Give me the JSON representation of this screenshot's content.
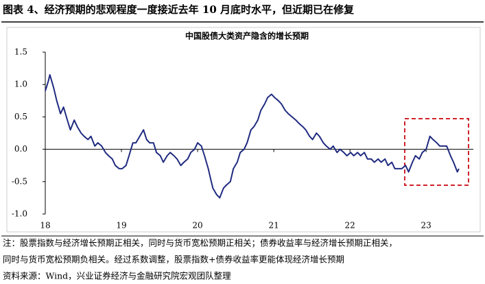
{
  "header": {
    "title": "图表 4、经济预期的悲观程度一度接近去年 10 月底时水平，但近期已在修复"
  },
  "chart_data": {
    "type": "line",
    "title": "中国股债大类资产隐含的增长预期",
    "color": "#1f2a80",
    "x": [
      18.0,
      18.04,
      18.06,
      18.11,
      18.15,
      18.2,
      18.24,
      18.29,
      18.33,
      18.38,
      18.42,
      18.47,
      18.51,
      18.56,
      18.6,
      18.65,
      18.69,
      18.74,
      18.79,
      18.83,
      18.88,
      18.92,
      18.97,
      19.01,
      19.06,
      19.1,
      19.15,
      19.19,
      19.24,
      19.29,
      19.33,
      19.37,
      19.42,
      19.46,
      19.51,
      19.55,
      19.6,
      19.64,
      19.69,
      19.73,
      19.78,
      19.82,
      19.87,
      19.91,
      19.96,
      20.0,
      20.05,
      20.09,
      20.14,
      20.17,
      20.2,
      20.25,
      20.29,
      20.34,
      20.38,
      20.43,
      20.47,
      20.52,
      20.56,
      20.61,
      20.65,
      20.7,
      20.74,
      20.79,
      20.83,
      20.88,
      20.92,
      20.97,
      21.01,
      21.06,
      21.1,
      21.15,
      21.19,
      21.24,
      21.29,
      21.33,
      21.38,
      21.42,
      21.47,
      21.51,
      21.56,
      21.6,
      21.65,
      21.69,
      21.74,
      21.78,
      21.83,
      21.87,
      21.92,
      21.96,
      22.01,
      22.05,
      22.1,
      22.14,
      22.19,
      22.23,
      22.28,
      22.32,
      22.37,
      22.41,
      22.46,
      22.5,
      22.55,
      22.59,
      22.64,
      22.68,
      22.73,
      22.77,
      22.82,
      22.86,
      22.91,
      22.95,
      23.0,
      23.05,
      23.09,
      23.14,
      23.18,
      23.23,
      23.27,
      23.32,
      23.36,
      23.41,
      23.43
    ],
    "values": [
      0.9,
      1.05,
      1.15,
      0.95,
      0.75,
      0.55,
      0.65,
      0.45,
      0.3,
      0.45,
      0.35,
      0.25,
      0.2,
      0.15,
      0.2,
      0.05,
      0.1,
      0.05,
      -0.05,
      -0.1,
      -0.15,
      -0.25,
      -0.3,
      -0.3,
      -0.25,
      -0.1,
      0.1,
      0.1,
      0.2,
      0.3,
      0.15,
      0.1,
      0.1,
      -0.05,
      -0.1,
      -0.2,
      -0.1,
      -0.05,
      -0.1,
      -0.15,
      -0.25,
      -0.2,
      -0.15,
      -0.05,
      0.0,
      0.1,
      0.05,
      -0.1,
      -0.3,
      -0.45,
      -0.6,
      -0.7,
      -0.75,
      -0.6,
      -0.55,
      -0.5,
      -0.3,
      -0.2,
      -0.05,
      0.0,
      0.1,
      0.3,
      0.35,
      0.45,
      0.6,
      0.7,
      0.8,
      0.85,
      0.8,
      0.75,
      0.7,
      0.6,
      0.55,
      0.5,
      0.45,
      0.4,
      0.35,
      0.3,
      0.2,
      0.15,
      0.25,
      0.2,
      0.1,
      0.05,
      0.0,
      0.05,
      -0.05,
      0.0,
      -0.05,
      -0.1,
      -0.05,
      -0.1,
      -0.05,
      -0.1,
      -0.05,
      -0.15,
      -0.15,
      -0.2,
      -0.15,
      -0.2,
      -0.15,
      -0.25,
      -0.2,
      -0.3,
      -0.3,
      -0.3,
      -0.25,
      -0.35,
      -0.2,
      -0.1,
      -0.15,
      -0.05,
      0.0,
      0.2,
      0.15,
      0.1,
      0.05,
      0.05,
      0.05,
      -0.1,
      -0.2,
      -0.35,
      -0.3
    ],
    "xlim": [
      18,
      23.62
    ],
    "xticks": [
      18,
      19,
      20,
      21,
      22,
      23
    ],
    "ylim": [
      -1,
      1.5
    ],
    "yticks": [
      1.5,
      {
        "value": 1,
        "label": "1.0"
      },
      0.5,
      {
        "value": 0,
        "label": "0.0"
      },
      -0.5,
      {
        "value": -1,
        "label": "-1.0"
      }
    ]
  },
  "notes": [
    "注：股票指数与经济增长预期正相关，同时与货币宽松预期正相关；债券收益率与经济增长预期正相关，",
    "同时与货币宽松预期负相关。经过系数调整，股票指数+债券收益率更能体现经济增长预期"
  ],
  "source": "资料来源：Wind，兴业证券经济与金融研究院宏观团队整理"
}
